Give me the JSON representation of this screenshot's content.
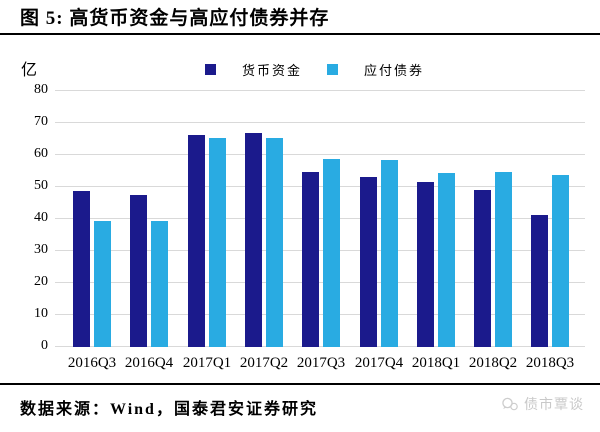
{
  "header": {
    "title": "图 5: 高货币资金与高应付债券并存"
  },
  "chart_data": {
    "type": "bar",
    "title": "高货币资金与高应付债券并存",
    "unit": "亿",
    "categories": [
      "2016Q3",
      "2016Q4",
      "2017Q1",
      "2017Q2",
      "2017Q3",
      "2017Q4",
      "2018Q1",
      "2018Q2",
      "2018Q3"
    ],
    "series": [
      {
        "name": "货币资金",
        "color": "#1B1A8C",
        "values": [
          48.6,
          47.4,
          66.3,
          66.8,
          54.8,
          53.2,
          51.6,
          49.0,
          41.3
        ]
      },
      {
        "name": "应付债券",
        "color": "#29ABE2",
        "values": [
          39.3,
          39.3,
          65.2,
          65.2,
          58.9,
          58.3,
          54.3,
          54.6,
          53.8
        ]
      }
    ],
    "ylim": [
      0,
      80
    ],
    "ytick_step": 10,
    "yticks": [
      0,
      10,
      20,
      30,
      40,
      50,
      60,
      70,
      80
    ],
    "grid": true,
    "gridline_color": "#d9d9d9",
    "legend_position": "top-center",
    "xlabel": "",
    "ylabel": "亿"
  },
  "footer": {
    "source": "数据来源：Wind，国泰君安证券研究",
    "watermark": "债市覃谈"
  },
  "colors": {
    "rule": "#000000",
    "watermark_text": "#c9c9c9"
  }
}
